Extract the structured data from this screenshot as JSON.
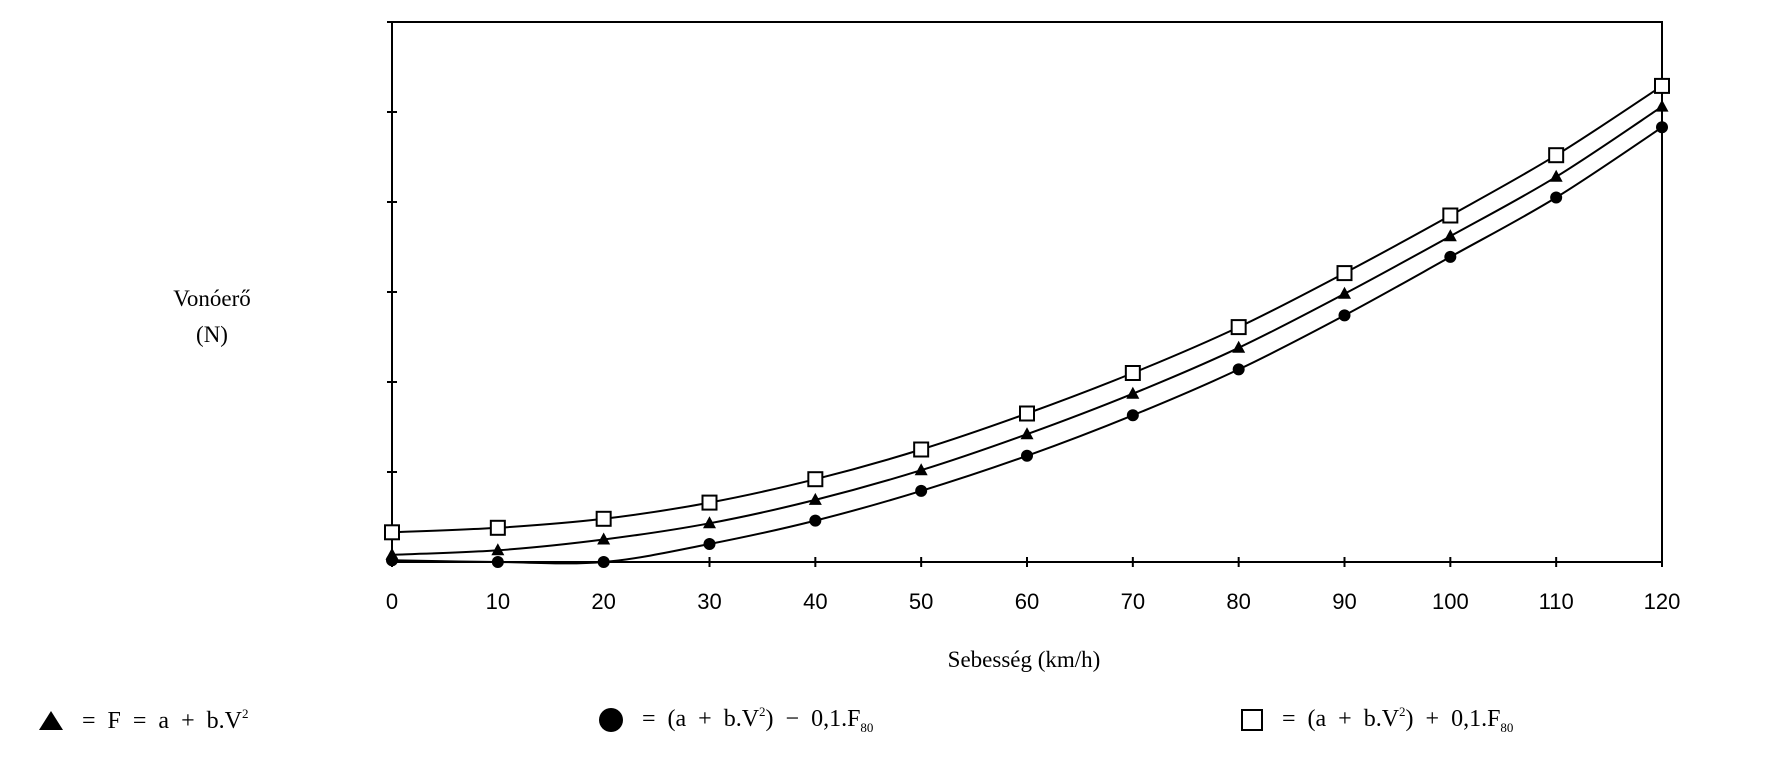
{
  "chart_data": {
    "type": "line",
    "title": "",
    "xlabel": "Sebesség (km/h)",
    "ylabel": [
      "Vonóerő",
      "(N)"
    ],
    "x": [
      0,
      10,
      20,
      30,
      40,
      50,
      60,
      70,
      80,
      90,
      100,
      110,
      120
    ],
    "xlim": [
      0,
      120
    ],
    "ylim": [
      0,
      6
    ],
    "y_ticks_labeled": false,
    "grid": false,
    "legend_position": "bottom",
    "series": [
      {
        "id": "triangle",
        "marker": "triangle",
        "legend_parts": [
          "= F = a + b.V",
          "2",
          ""
        ],
        "values": [
          0.08,
          0.13,
          0.25,
          0.43,
          0.69,
          1.02,
          1.42,
          1.87,
          2.38,
          2.98,
          3.62,
          4.28,
          5.06
        ]
      },
      {
        "id": "circle",
        "marker": "circle",
        "legend_parts": [
          "= (a + b.V",
          "2",
          ") − 0,1.F",
          "80"
        ],
        "values": [
          0.02,
          0.0,
          0.0,
          0.2,
          0.46,
          0.79,
          1.18,
          1.63,
          2.14,
          2.74,
          3.39,
          4.05,
          4.83
        ]
      },
      {
        "id": "square",
        "marker": "square",
        "legend_parts": [
          "= (a + b.V",
          "2",
          ") + 0,1.F",
          "80"
        ],
        "values": [
          0.33,
          0.38,
          0.48,
          0.66,
          0.92,
          1.25,
          1.65,
          2.1,
          2.61,
          3.21,
          3.85,
          4.52,
          5.29
        ]
      }
    ]
  }
}
